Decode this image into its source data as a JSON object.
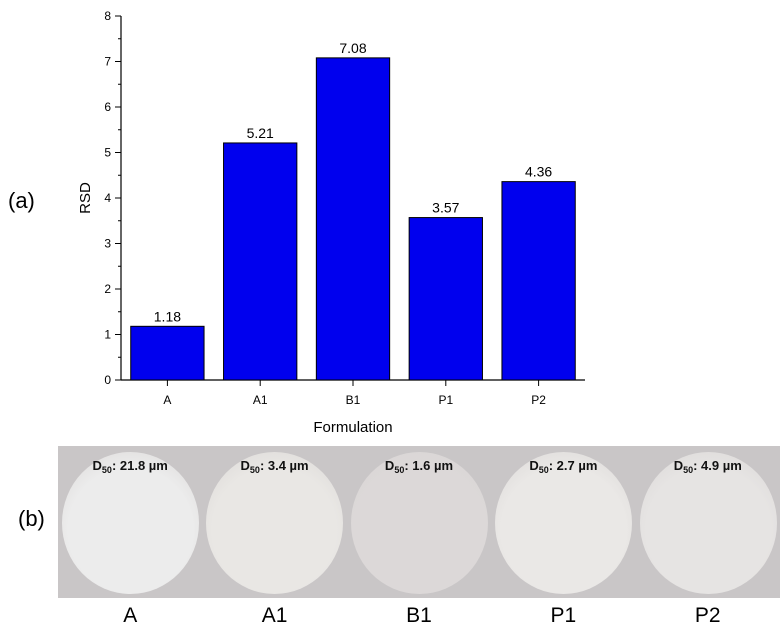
{
  "panel_labels": {
    "a": "(a)",
    "b": "(b)"
  },
  "chart_data": {
    "type": "bar",
    "categories": [
      "A",
      "A1",
      "B1",
      "P1",
      "P2"
    ],
    "values": [
      1.18,
      5.21,
      7.08,
      3.57,
      4.36
    ],
    "data_labels": [
      "1.18",
      "5.21",
      "7.08",
      "3.57",
      "4.36"
    ],
    "title": "",
    "xlabel": "Formulation",
    "ylabel": "RSD",
    "ylim": [
      0,
      8
    ],
    "yticks": [
      0,
      1,
      2,
      3,
      4,
      5,
      6,
      7,
      8
    ],
    "grid": false,
    "bar_color": "#0000ee"
  },
  "photos": [
    {
      "name": "A",
      "d50_prefix": "D",
      "d50_sub": "50",
      "d50_value": ": 21.8 µm",
      "tone": "#ececec"
    },
    {
      "name": "A1",
      "d50_prefix": "D",
      "d50_sub": "50",
      "d50_value": ": 3.4 µm",
      "tone": "#e9e7e4"
    },
    {
      "name": "B1",
      "d50_prefix": "D",
      "d50_sub": "50",
      "d50_value": ": 1.6 µm",
      "tone": "#dcd8d8"
    },
    {
      "name": "P1",
      "d50_prefix": "D",
      "d50_sub": "50",
      "d50_value": ": 2.7 µm",
      "tone": "#eae8e6"
    },
    {
      "name": "P2",
      "d50_prefix": "D",
      "d50_sub": "50",
      "d50_value": ": 4.9 µm",
      "tone": "#e6e4e3"
    }
  ],
  "colors": {
    "photo_background": "#c9c6c7",
    "axis": "#000000"
  }
}
